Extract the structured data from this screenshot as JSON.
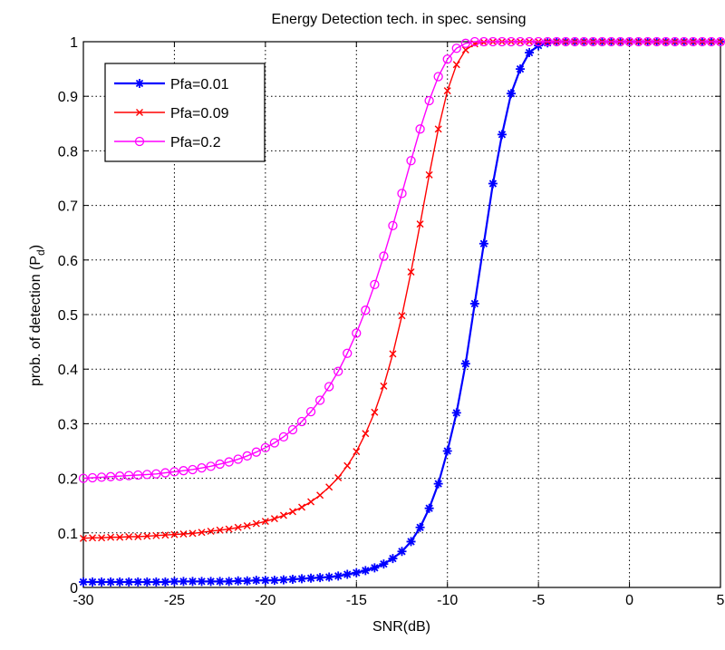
{
  "chart_data": {
    "type": "line",
    "title": "Energy Detection tech. in spec. sensing",
    "xlabel": "SNR(dB)",
    "ylabel": "prob. of detection (P",
    "ylabel_subscript": "d",
    "ylabel_suffix": ")",
    "xlim": [
      -30,
      5
    ],
    "ylim": [
      0,
      1
    ],
    "xticks": [
      "-30",
      "-25",
      "-20",
      "-15",
      "-10",
      "-5",
      "0",
      "5"
    ],
    "yticks": [
      "0",
      "0.1",
      "0.2",
      "0.3",
      "0.4",
      "0.5",
      "0.6",
      "0.7",
      "0.8",
      "0.9",
      "1"
    ],
    "grid": true,
    "legend_position": "top-left",
    "x_start": -30,
    "x_step": 0.5,
    "x_end": 5,
    "series": [
      {
        "name": "Pfa=0.01",
        "color": "#0000ff",
        "marker": "star",
        "values": [
          0.01,
          0.01,
          0.01,
          0.01,
          0.01,
          0.01,
          0.01,
          0.01,
          0.01,
          0.01,
          0.011,
          0.011,
          0.011,
          0.011,
          0.011,
          0.011,
          0.011,
          0.012,
          0.012,
          0.013,
          0.013,
          0.013,
          0.014,
          0.015,
          0.016,
          0.017,
          0.018,
          0.019,
          0.021,
          0.024,
          0.027,
          0.031,
          0.036,
          0.043,
          0.053,
          0.066,
          0.084,
          0.11,
          0.145,
          0.19,
          0.25,
          0.32,
          0.41,
          0.52,
          0.63,
          0.74,
          0.83,
          0.905,
          0.95,
          0.98,
          0.993,
          0.998,
          1.0,
          1.0,
          1.0,
          1.0,
          1.0,
          1.0,
          1.0,
          1.0,
          1.0,
          1.0,
          1.0,
          1.0,
          1.0,
          1.0,
          1.0,
          1.0,
          1.0,
          1.0,
          1.0
        ]
      },
      {
        "name": "Pfa=0.09",
        "color": "#ff0000",
        "marker": "x",
        "values": [
          0.09,
          0.091,
          0.091,
          0.092,
          0.092,
          0.093,
          0.093,
          0.094,
          0.095,
          0.096,
          0.097,
          0.098,
          0.099,
          0.101,
          0.103,
          0.105,
          0.107,
          0.11,
          0.113,
          0.117,
          0.121,
          0.126,
          0.132,
          0.139,
          0.147,
          0.157,
          0.169,
          0.184,
          0.201,
          0.223,
          0.249,
          0.282,
          0.321,
          0.369,
          0.428,
          0.498,
          0.578,
          0.666,
          0.756,
          0.84,
          0.91,
          0.958,
          0.985,
          0.996,
          0.999,
          1.0,
          1.0,
          1.0,
          1.0,
          1.0,
          1.0,
          1.0,
          1.0,
          1.0,
          1.0,
          1.0,
          1.0,
          1.0,
          1.0,
          1.0,
          1.0,
          1.0,
          1.0,
          1.0,
          1.0,
          1.0,
          1.0,
          1.0,
          1.0,
          1.0,
          1.0
        ]
      },
      {
        "name": "Pfa=0.2",
        "color": "#ff00ff",
        "marker": "circle",
        "values": [
          0.2,
          0.201,
          0.202,
          0.203,
          0.204,
          0.205,
          0.206,
          0.207,
          0.208,
          0.21,
          0.212,
          0.214,
          0.216,
          0.219,
          0.222,
          0.226,
          0.23,
          0.235,
          0.241,
          0.248,
          0.256,
          0.265,
          0.276,
          0.289,
          0.304,
          0.322,
          0.343,
          0.368,
          0.396,
          0.429,
          0.466,
          0.508,
          0.555,
          0.607,
          0.663,
          0.722,
          0.782,
          0.84,
          0.892,
          0.936,
          0.968,
          0.988,
          0.997,
          1.0,
          1.0,
          1.0,
          1.0,
          1.0,
          1.0,
          1.0,
          1.0,
          1.0,
          1.0,
          1.0,
          1.0,
          1.0,
          1.0,
          1.0,
          1.0,
          1.0,
          1.0,
          1.0,
          1.0,
          1.0,
          1.0,
          1.0,
          1.0,
          1.0,
          1.0,
          1.0,
          1.0
        ]
      }
    ]
  }
}
